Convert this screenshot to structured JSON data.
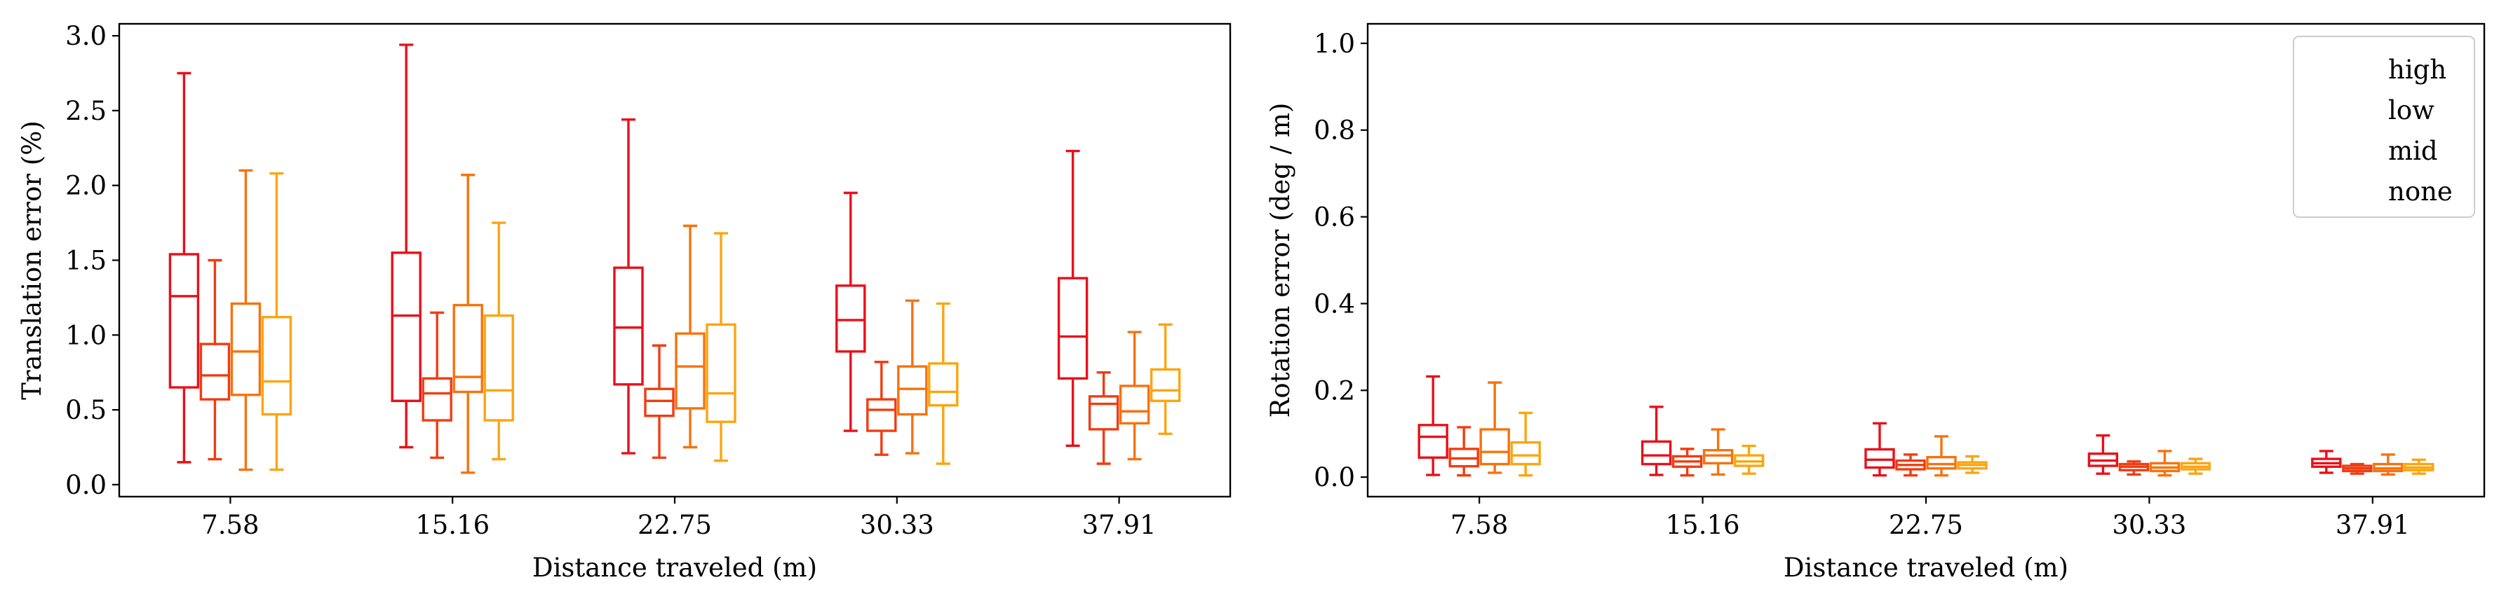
{
  "chart_data": [
    {
      "type": "box",
      "xlabel": "Distance traveled (m)",
      "ylabel": "Translation error (%)",
      "categories": [
        "7.58",
        "15.16",
        "22.75",
        "30.33",
        "37.91"
      ],
      "ylim": [
        -0.08,
        3.08
      ],
      "yticks": [
        0.0,
        0.5,
        1.0,
        1.5,
        2.0,
        2.5,
        3.0
      ],
      "ytick_labels": [
        "0.0",
        "0.5",
        "1.0",
        "1.5",
        "2.0",
        "2.5",
        "3.0"
      ],
      "grid": false,
      "series": [
        {
          "name": "high",
          "color": "#e8101a",
          "boxes": [
            {
              "whislo": 0.15,
              "q1": 0.65,
              "med": 1.26,
              "q3": 1.54,
              "whishi": 2.75
            },
            {
              "whislo": 0.25,
              "q1": 0.56,
              "med": 1.13,
              "q3": 1.55,
              "whishi": 2.94
            },
            {
              "whislo": 0.21,
              "q1": 0.67,
              "med": 1.05,
              "q3": 1.45,
              "whishi": 2.44
            },
            {
              "whislo": 0.36,
              "q1": 0.89,
              "med": 1.1,
              "q3": 1.33,
              "whishi": 1.95
            },
            {
              "whislo": 0.26,
              "q1": 0.71,
              "med": 0.99,
              "q3": 1.38,
              "whishi": 2.23
            }
          ]
        },
        {
          "name": "low",
          "color": "#f03c12",
          "boxes": [
            {
              "whislo": 0.17,
              "q1": 0.57,
              "med": 0.73,
              "q3": 0.94,
              "whishi": 1.5
            },
            {
              "whislo": 0.18,
              "q1": 0.43,
              "med": 0.61,
              "q3": 0.71,
              "whishi": 1.15
            },
            {
              "whislo": 0.18,
              "q1": 0.46,
              "med": 0.56,
              "q3": 0.64,
              "whishi": 0.93
            },
            {
              "whislo": 0.2,
              "q1": 0.36,
              "med": 0.5,
              "q3": 0.57,
              "whishi": 0.82
            },
            {
              "whislo": 0.14,
              "q1": 0.37,
              "med": 0.54,
              "q3": 0.59,
              "whishi": 0.75
            }
          ]
        },
        {
          "name": "mid",
          "color": "#f7720e",
          "boxes": [
            {
              "whislo": 0.1,
              "q1": 0.6,
              "med": 0.89,
              "q3": 1.21,
              "whishi": 2.1
            },
            {
              "whislo": 0.08,
              "q1": 0.62,
              "med": 0.72,
              "q3": 1.2,
              "whishi": 2.07
            },
            {
              "whislo": 0.25,
              "q1": 0.51,
              "med": 0.79,
              "q3": 1.01,
              "whishi": 1.73
            },
            {
              "whislo": 0.21,
              "q1": 0.47,
              "med": 0.64,
              "q3": 0.79,
              "whishi": 1.23
            },
            {
              "whislo": 0.17,
              "q1": 0.41,
              "med": 0.49,
              "q3": 0.66,
              "whishi": 1.02
            }
          ]
        },
        {
          "name": "none",
          "color": "#fba511",
          "boxes": [
            {
              "whislo": 0.1,
              "q1": 0.47,
              "med": 0.69,
              "q3": 1.12,
              "whishi": 2.08
            },
            {
              "whislo": 0.17,
              "q1": 0.43,
              "med": 0.63,
              "q3": 1.13,
              "whishi": 1.75
            },
            {
              "whislo": 0.16,
              "q1": 0.42,
              "med": 0.61,
              "q3": 1.07,
              "whishi": 1.68
            },
            {
              "whislo": 0.14,
              "q1": 0.53,
              "med": 0.62,
              "q3": 0.81,
              "whishi": 1.21
            },
            {
              "whislo": 0.34,
              "q1": 0.56,
              "med": 0.63,
              "q3": 0.77,
              "whishi": 1.07
            }
          ]
        }
      ]
    },
    {
      "type": "box",
      "xlabel": "Distance traveled (m)",
      "ylabel": "Rotation error (deg / m)",
      "categories": [
        "7.58",
        "15.16",
        "22.75",
        "30.33",
        "37.91"
      ],
      "ylim": [
        -0.045,
        1.045
      ],
      "yticks": [
        0.0,
        0.2,
        0.4,
        0.6,
        0.8,
        1.0
      ],
      "ytick_labels": [
        "0.0",
        "0.2",
        "0.4",
        "0.6",
        "0.8",
        "1.0"
      ],
      "grid": false,
      "legend": {
        "position": "top-right",
        "entries": [
          "high",
          "low",
          "mid",
          "none"
        ]
      },
      "series": [
        {
          "name": "high",
          "color": "#e8101a",
          "boxes": [
            {
              "whislo": 0.005,
              "q1": 0.045,
              "med": 0.093,
              "q3": 0.12,
              "whishi": 0.232
            },
            {
              "whislo": 0.005,
              "q1": 0.03,
              "med": 0.05,
              "q3": 0.082,
              "whishi": 0.162
            },
            {
              "whislo": 0.004,
              "q1": 0.022,
              "med": 0.04,
              "q3": 0.064,
              "whishi": 0.124
            },
            {
              "whislo": 0.008,
              "q1": 0.026,
              "med": 0.038,
              "q3": 0.054,
              "whishi": 0.096
            },
            {
              "whislo": 0.01,
              "q1": 0.024,
              "med": 0.032,
              "q3": 0.042,
              "whishi": 0.06
            }
          ]
        },
        {
          "name": "low",
          "color": "#f03c12",
          "boxes": [
            {
              "whislo": 0.004,
              "q1": 0.025,
              "med": 0.043,
              "q3": 0.065,
              "whishi": 0.115
            },
            {
              "whislo": 0.004,
              "q1": 0.024,
              "med": 0.036,
              "q3": 0.048,
              "whishi": 0.065
            },
            {
              "whislo": 0.004,
              "q1": 0.018,
              "med": 0.028,
              "q3": 0.038,
              "whishi": 0.052
            },
            {
              "whislo": 0.006,
              "q1": 0.016,
              "med": 0.024,
              "q3": 0.03,
              "whishi": 0.036
            },
            {
              "whislo": 0.008,
              "q1": 0.014,
              "med": 0.02,
              "q3": 0.026,
              "whishi": 0.03
            }
          ]
        },
        {
          "name": "mid",
          "color": "#f7720e",
          "boxes": [
            {
              "whislo": 0.01,
              "q1": 0.03,
              "med": 0.058,
              "q3": 0.11,
              "whishi": 0.218
            },
            {
              "whislo": 0.006,
              "q1": 0.032,
              "med": 0.05,
              "q3": 0.062,
              "whishi": 0.11
            },
            {
              "whislo": 0.004,
              "q1": 0.02,
              "med": 0.03,
              "q3": 0.046,
              "whishi": 0.094
            },
            {
              "whislo": 0.004,
              "q1": 0.014,
              "med": 0.022,
              "q3": 0.032,
              "whishi": 0.06
            },
            {
              "whislo": 0.006,
              "q1": 0.014,
              "med": 0.02,
              "q3": 0.03,
              "whishi": 0.052
            }
          ]
        },
        {
          "name": "none",
          "color": "#fba511",
          "boxes": [
            {
              "whislo": 0.004,
              "q1": 0.03,
              "med": 0.05,
              "q3": 0.08,
              "whishi": 0.148
            },
            {
              "whislo": 0.008,
              "q1": 0.026,
              "med": 0.036,
              "q3": 0.05,
              "whishi": 0.072
            },
            {
              "whislo": 0.01,
              "q1": 0.02,
              "med": 0.028,
              "q3": 0.034,
              "whishi": 0.048
            },
            {
              "whislo": 0.008,
              "q1": 0.018,
              "med": 0.024,
              "q3": 0.032,
              "whishi": 0.042
            },
            {
              "whislo": 0.008,
              "q1": 0.016,
              "med": 0.022,
              "q3": 0.03,
              "whishi": 0.04
            }
          ]
        }
      ]
    }
  ]
}
